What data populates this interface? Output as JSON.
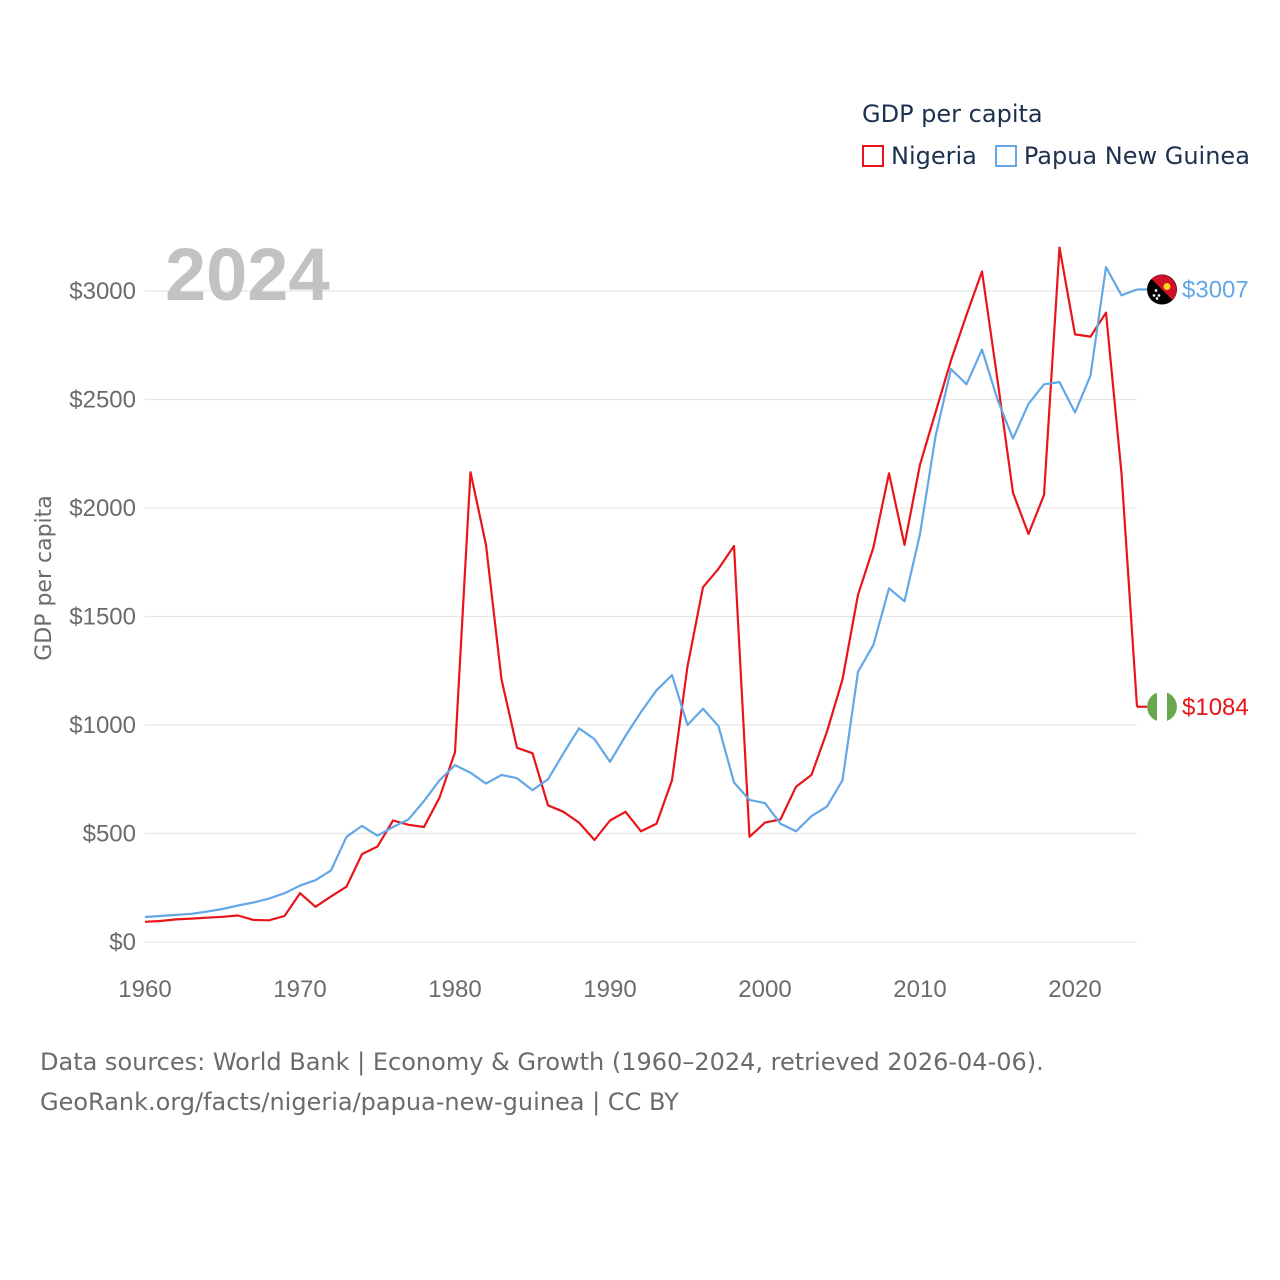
{
  "legend": {
    "title": "GDP per capita",
    "items": [
      {
        "name": "Nigeria",
        "color": "#e8141a"
      },
      {
        "name": "Papua New Guinea",
        "color": "#63a7e6"
      }
    ]
  },
  "sources": {
    "line1": "Data sources: World Bank | Economy & Growth (1960–2024, retrieved 2026-04-06).",
    "line2": "GeoRank.org/facts/nigeria/papua-new-guinea | CC BY"
  },
  "chart_data": {
    "type": "line",
    "title": "2024",
    "ylabel": "GDP per capita",
    "xlabel": "",
    "xlim": [
      1960,
      2024
    ],
    "ylim": [
      0,
      3300
    ],
    "x_ticks": [
      1960,
      1970,
      1980,
      1990,
      2000,
      2010,
      2020
    ],
    "y_ticks": [
      {
        "value": 0,
        "label": "$0"
      },
      {
        "value": 500,
        "label": "$500"
      },
      {
        "value": 1000,
        "label": "$1000"
      },
      {
        "value": 1500,
        "label": "$1500"
      },
      {
        "value": 2000,
        "label": "$2000"
      },
      {
        "value": 2500,
        "label": "$2500"
      },
      {
        "value": 3000,
        "label": "$3000"
      }
    ],
    "grid": true,
    "x": [
      1960,
      1961,
      1962,
      1963,
      1964,
      1965,
      1966,
      1967,
      1968,
      1969,
      1970,
      1971,
      1972,
      1973,
      1974,
      1975,
      1976,
      1977,
      1978,
      1979,
      1980,
      1981,
      1982,
      1983,
      1984,
      1985,
      1986,
      1987,
      1988,
      1989,
      1990,
      1991,
      1992,
      1993,
      1994,
      1995,
      1996,
      1997,
      1998,
      1999,
      2000,
      2001,
      2002,
      2003,
      2004,
      2005,
      2006,
      2007,
      2008,
      2009,
      2010,
      2011,
      2012,
      2013,
      2014,
      2015,
      2016,
      2017,
      2018,
      2019,
      2020,
      2021,
      2022,
      2023,
      2024
    ],
    "series": [
      {
        "name": "Nigeria",
        "color": "#e8141a",
        "end_label": "$1084",
        "values": [
          93,
          97,
          104,
          108,
          112,
          116,
          122,
          102,
          100,
          120,
          225,
          162,
          210,
          255,
          405,
          440,
          560,
          540,
          530,
          665,
          875,
          2165,
          1830,
          1210,
          895,
          870,
          630,
          600,
          550,
          470,
          560,
          600,
          510,
          545,
          745,
          1270,
          1635,
          1720,
          1825,
          485,
          550,
          565,
          715,
          770,
          970,
          1210,
          1600,
          1820,
          2160,
          1830,
          2200,
          2440,
          2680,
          2890,
          3090,
          2590,
          2070,
          1880,
          2060,
          3200,
          2800,
          2790,
          2900,
          2160,
          1084
        ]
      },
      {
        "name": "Papua New Guinea",
        "color": "#63a7e6",
        "end_label": "$3007",
        "values": [
          115,
          120,
          125,
          130,
          140,
          152,
          168,
          182,
          200,
          225,
          260,
          285,
          330,
          485,
          535,
          490,
          530,
          565,
          650,
          745,
          815,
          780,
          730,
          770,
          755,
          700,
          750,
          870,
          985,
          935,
          830,
          950,
          1060,
          1160,
          1230,
          1000,
          1075,
          995,
          735,
          655,
          640,
          545,
          510,
          580,
          625,
          745,
          1245,
          1370,
          1630,
          1570,
          1880,
          2330,
          2640,
          2570,
          2730,
          2500,
          2320,
          2480,
          2570,
          2580,
          2440,
          2610,
          3110,
          2980,
          3007
        ]
      }
    ]
  }
}
